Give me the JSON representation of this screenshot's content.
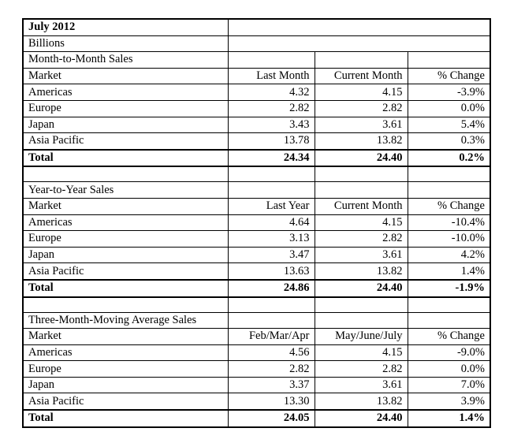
{
  "header": {
    "title": "July 2012",
    "units": "Billions"
  },
  "sections": [
    {
      "title": "Month-to-Month Sales",
      "columns": [
        "Market",
        "Last Month",
        "Current Month",
        "% Change"
      ],
      "rows": [
        [
          "Americas",
          "4.32",
          "4.15",
          "-3.9%"
        ],
        [
          "Europe",
          "2.82",
          "2.82",
          "0.0%"
        ],
        [
          "Japan",
          "3.43",
          "3.61",
          "5.4%"
        ],
        [
          "Asia Pacific",
          "13.78",
          "13.82",
          "0.3%"
        ]
      ],
      "total": [
        "Total",
        "24.34",
        "24.40",
        "0.2%"
      ]
    },
    {
      "title": "Year-to-Year Sales",
      "columns": [
        "Market",
        "Last Year",
        "Current Month",
        "% Change"
      ],
      "rows": [
        [
          "Americas",
          "4.64",
          "4.15",
          "-10.4%"
        ],
        [
          "Europe",
          "3.13",
          "2.82",
          "-10.0%"
        ],
        [
          "Japan",
          "3.47",
          "3.61",
          "4.2%"
        ],
        [
          "Asia Pacific",
          "13.63",
          "13.82",
          "1.4%"
        ]
      ],
      "total": [
        "Total",
        "24.86",
        "24.40",
        "-1.9%"
      ]
    },
    {
      "title": "Three-Month-Moving Average Sales",
      "columns": [
        "Market",
        "Feb/Mar/Apr",
        "May/June/July",
        "% Change"
      ],
      "rows": [
        [
          "Americas",
          "4.56",
          "4.15",
          "-9.0%"
        ],
        [
          "Europe",
          "2.82",
          "2.82",
          "0.0%"
        ],
        [
          "Japan",
          "3.37",
          "3.61",
          "7.0%"
        ],
        [
          "Asia Pacific",
          "13.30",
          "13.82",
          "3.9%"
        ]
      ],
      "total": [
        "Total",
        "24.05",
        "24.40",
        "1.4%"
      ]
    }
  ]
}
